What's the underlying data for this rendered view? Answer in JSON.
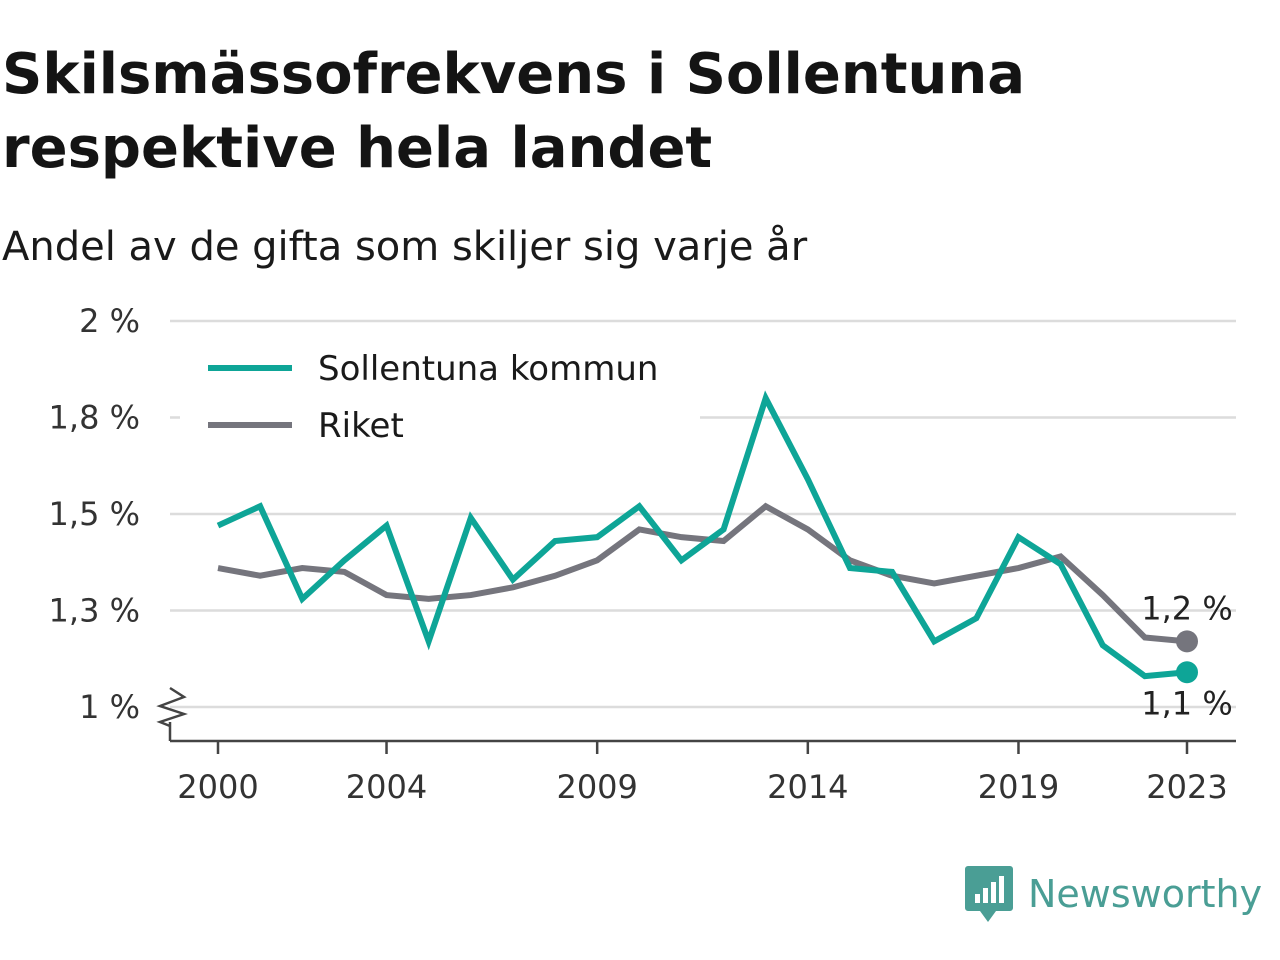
{
  "title": "Skilsmässofrekvens i Sollentuna respektive hela landet",
  "subtitle": "Andel av de gifta som skiljer sig varje år",
  "brand": {
    "name": "Newsworthy",
    "icon": "newsworthy-logo-icon",
    "color": "#4a9e95"
  },
  "chart_data": {
    "type": "line",
    "title": "Skilsmässofrekvens i Sollentuna respektive hela landet",
    "subtitle": "Andel av de gifta som skiljer sig varje år",
    "xlabel": "",
    "ylabel": "",
    "x": [
      2000,
      2001,
      2002,
      2003,
      2004,
      2005,
      2006,
      2007,
      2008,
      2009,
      2010,
      2011,
      2012,
      2013,
      2014,
      2015,
      2016,
      2017,
      2018,
      2019,
      2020,
      2021,
      2022,
      2023
    ],
    "x_ticks": [
      2000,
      2004,
      2009,
      2014,
      2019,
      2023
    ],
    "x_tick_labels": [
      "2000",
      "2004",
      "2009",
      "2014",
      "2019",
      "2023"
    ],
    "y_ticks": [
      1.0,
      1.25,
      1.5,
      1.75,
      2.0
    ],
    "y_tick_labels": [
      "1 %",
      "1,3 %",
      "1,5 %",
      "1,8 %",
      "2 %"
    ],
    "ylim": [
      1.0,
      2.0
    ],
    "y_axis_break": true,
    "grid": true,
    "legend_position": "top-left",
    "series": [
      {
        "name": "Sollentuna kommun",
        "color": "#0ea597",
        "values": [
          1.47,
          1.52,
          1.28,
          1.38,
          1.47,
          1.17,
          1.49,
          1.33,
          1.43,
          1.44,
          1.52,
          1.38,
          1.46,
          1.8,
          1.59,
          1.36,
          1.35,
          1.17,
          1.23,
          1.44,
          1.37,
          1.16,
          1.08,
          1.09
        ],
        "end_label": "1,1 %"
      },
      {
        "name": "Riket",
        "color": "#75757d",
        "values": [
          1.36,
          1.34,
          1.36,
          1.35,
          1.29,
          1.28,
          1.29,
          1.31,
          1.34,
          1.38,
          1.46,
          1.44,
          1.43,
          1.52,
          1.46,
          1.38,
          1.34,
          1.32,
          1.34,
          1.36,
          1.39,
          1.29,
          1.18,
          1.17
        ],
        "end_label": "1,2 %"
      }
    ]
  }
}
